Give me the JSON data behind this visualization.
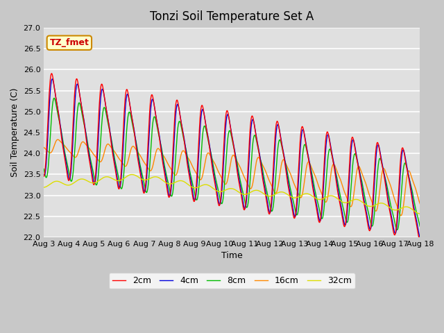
{
  "title": "Tonzi Soil Temperature Set A",
  "xlabel": "Time",
  "ylabel": "Soil Temperature (C)",
  "ylim": [
    22.0,
    27.0
  ],
  "yticks": [
    22.0,
    22.5,
    23.0,
    23.5,
    24.0,
    24.5,
    25.0,
    25.5,
    26.0,
    26.5,
    27.0
  ],
  "date_labels": [
    "Aug 3",
    "Aug 4",
    "Aug 5",
    "Aug 6",
    "Aug 7",
    "Aug 8",
    "Aug 9",
    "Aug 10",
    "Aug 11",
    "Aug 12",
    "Aug 13",
    "Aug 14",
    "Aug 15",
    "Aug 16",
    "Aug 17",
    "Aug 18"
  ],
  "legend_labels": [
    "2cm",
    "4cm",
    "8cm",
    "16cm",
    "32cm"
  ],
  "legend_colors": [
    "#ff0000",
    "#0000dd",
    "#00bb00",
    "#ff8800",
    "#dddd00"
  ],
  "annotation_text": "TZ_fmet",
  "annotation_bg": "#ffffcc",
  "annotation_border": "#cc8800",
  "fig_bg": "#c8c8c8",
  "plot_bg": "#e0e0e0",
  "grid_color": "#ffffff",
  "title_fontsize": 12,
  "label_fontsize": 9,
  "tick_fontsize": 8,
  "linewidth": 1.0
}
